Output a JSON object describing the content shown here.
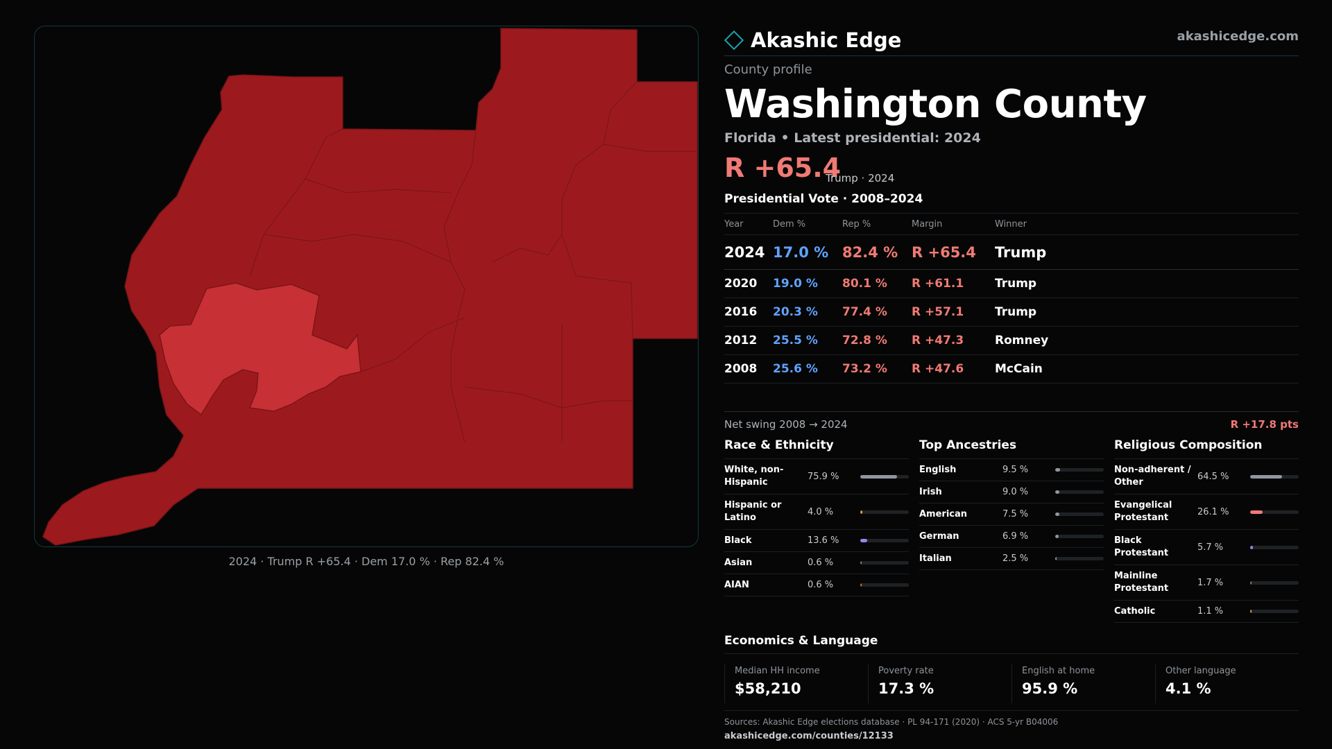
{
  "brand": {
    "name": "Akashic Edge",
    "url": "akashicedge.com"
  },
  "county": {
    "kicker": "County profile",
    "name": "Washington County",
    "subtitle": "Florida • Latest presidential: 2024",
    "headline_margin": "R +65.4",
    "headline_note": "Trump · 2024"
  },
  "map": {
    "caption": "2024 · Trump R +65.4 · Dem 17.0 % · Rep 82.4 %",
    "colors": {
      "primary": "#9c1a1e",
      "highlight": "#c73034",
      "border": "#7d1418"
    }
  },
  "vote": {
    "title": "Presidential Vote · 2008–2024",
    "headers": {
      "year": "Year",
      "dem": "Dem %",
      "rep": "Rep %",
      "margin": "Margin",
      "winner": "Winner"
    },
    "rows": [
      {
        "year": "2024",
        "dem": "17.0 %",
        "rep": "82.4 %",
        "margin": "R +65.4",
        "winner": "Trump"
      },
      {
        "year": "2020",
        "dem": "19.0 %",
        "rep": "80.1 %",
        "margin": "R +61.1",
        "winner": "Trump"
      },
      {
        "year": "2016",
        "dem": "20.3 %",
        "rep": "77.4 %",
        "margin": "R +57.1",
        "winner": "Trump"
      },
      {
        "year": "2012",
        "dem": "25.5 %",
        "rep": "72.8 %",
        "margin": "R +47.3",
        "winner": "Romney"
      },
      {
        "year": "2008",
        "dem": "25.6 %",
        "rep": "73.2 %",
        "margin": "R +47.6",
        "winner": "McCain"
      }
    ],
    "swing_label": "Net swing 2008 → 2024",
    "swing_value": "R +17.8 pts"
  },
  "race": {
    "title": "Race & Ethnicity",
    "items": [
      {
        "label": "White, non-Hispanic",
        "value": "75.9 %",
        "fraction": 0.759,
        "color": "#8f97a3"
      },
      {
        "label": "Hispanic or Latino",
        "value": "4.0 %",
        "fraction": 0.04,
        "color": "#d9a43a"
      },
      {
        "label": "Black",
        "value": "13.6 %",
        "fraction": 0.136,
        "color": "#9a84f0"
      },
      {
        "label": "Asian",
        "value": "0.6 %",
        "fraction": 0.006,
        "color": "#7b8088"
      },
      {
        "label": "AIAN",
        "value": "0.6 %",
        "fraction": 0.006,
        "color": "#c07a40"
      }
    ]
  },
  "ancestry": {
    "title": "Top Ancestries",
    "items": [
      {
        "label": "English",
        "value": "9.5 %",
        "fraction": 0.095,
        "color": "#8f97a3"
      },
      {
        "label": "Irish",
        "value": "9.0 %",
        "fraction": 0.09,
        "color": "#8f97a3"
      },
      {
        "label": "American",
        "value": "7.5 %",
        "fraction": 0.075,
        "color": "#8f97a3"
      },
      {
        "label": "German",
        "value": "6.9 %",
        "fraction": 0.069,
        "color": "#8f97a3"
      },
      {
        "label": "Italian",
        "value": "2.5 %",
        "fraction": 0.025,
        "color": "#8f97a3"
      }
    ]
  },
  "religion": {
    "title": "Religious Composition",
    "items": [
      {
        "label": "Non-adherent / Other",
        "value": "64.5 %",
        "fraction": 0.645,
        "color": "#8f97a3"
      },
      {
        "label": "Evangelical Protestant",
        "value": "26.1 %",
        "fraction": 0.261,
        "color": "#f07a74"
      },
      {
        "label": "Black Protestant",
        "value": "5.7 %",
        "fraction": 0.057,
        "color": "#9a84f0"
      },
      {
        "label": "Mainline Protestant",
        "value": "1.7 %",
        "fraction": 0.017,
        "color": "#7b8088"
      },
      {
        "label": "Catholic",
        "value": "1.1 %",
        "fraction": 0.011,
        "color": "#d9a43a"
      }
    ]
  },
  "economics": {
    "title": "Economics & Language",
    "cards": [
      {
        "label": "Median HH income",
        "value": "$58,210"
      },
      {
        "label": "Poverty rate",
        "value": "17.3 %"
      },
      {
        "label": "English at home",
        "value": "95.9 %"
      },
      {
        "label": "Other language",
        "value": "4.1 %"
      }
    ]
  },
  "footer": {
    "sources": "Sources: Akashic Edge elections database · PL 94-171 (2020) · ACS 5-yr B04006",
    "url": "akashicedge.com/counties/12133"
  }
}
